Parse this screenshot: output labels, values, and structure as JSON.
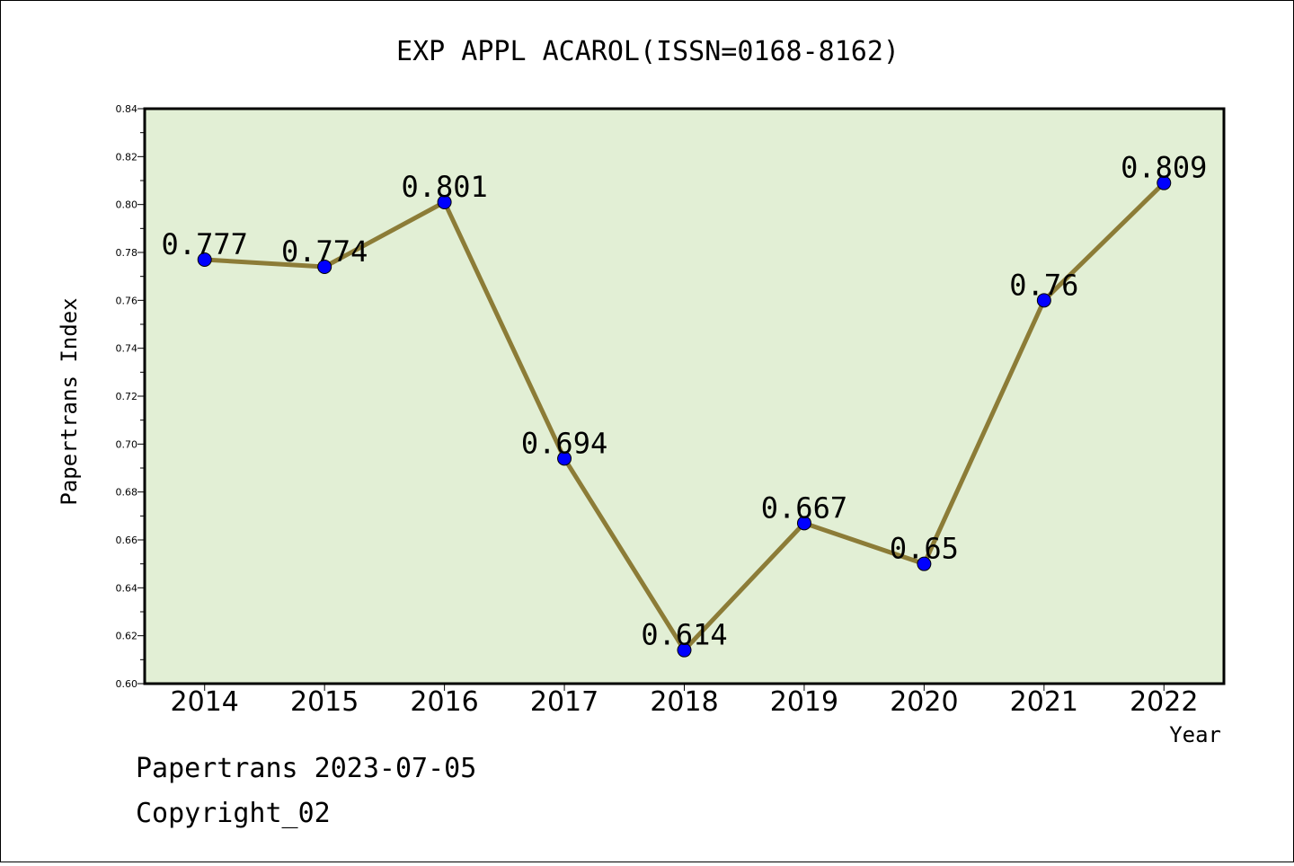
{
  "chart_data": {
    "type": "line",
    "title": "EXP APPL ACAROL(ISSN=0168-8162)",
    "xlabel": "Year",
    "ylabel": "Papertrans Index",
    "categories": [
      "2014",
      "2015",
      "2016",
      "2017",
      "2018",
      "2019",
      "2020",
      "2021",
      "2022"
    ],
    "series": [
      {
        "values": [
          0.777,
          0.774,
          0.801,
          0.694,
          0.614,
          0.667,
          0.65,
          0.76,
          0.809
        ],
        "data_labels": [
          "0.777",
          "0.774",
          "0.801",
          "0.694",
          "0.614",
          "0.667",
          "0.65",
          "0.76",
          "0.809"
        ]
      }
    ],
    "ylim": [
      0.6,
      0.84
    ],
    "yticks": [
      "0.60",
      "0.62",
      "0.64",
      "0.66",
      "0.68",
      "0.70",
      "0.72",
      "0.74",
      "0.76",
      "0.78",
      "0.80",
      "0.82",
      "0.84"
    ],
    "grid": false,
    "legend": "none",
    "colors": {
      "plot_background": "#e2efd5",
      "line": "#8c7c37",
      "marker": "#0000ff"
    }
  },
  "footer": {
    "line1": "Papertrans 2023-07-05",
    "line2": "Copyright_02"
  }
}
